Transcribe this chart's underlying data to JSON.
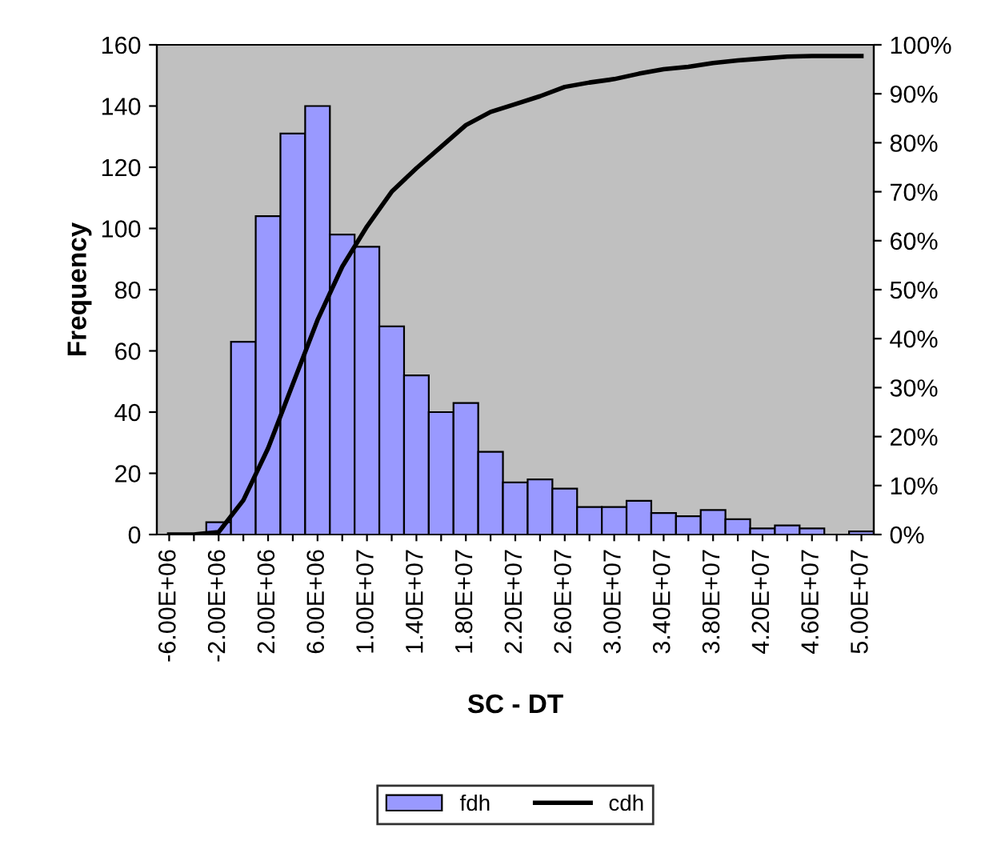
{
  "chart_data": {
    "type": "bar",
    "xlabel": "SC - DT",
    "ylabel": "Frequency",
    "categories": [
      "-6.00E+06",
      null,
      "-2.00E+06",
      null,
      "2.00E+06",
      null,
      "6.00E+06",
      null,
      "1.00E+07",
      null,
      "1.40E+07",
      null,
      "1.80E+07",
      null,
      "2.20E+07",
      null,
      "2.60E+07",
      null,
      "3.00E+07",
      null,
      "3.40E+07",
      null,
      "3.80E+07",
      null,
      "4.20E+07",
      null,
      "4.60E+07",
      null,
      "5.00E+07"
    ],
    "series": [
      {
        "name": "fdh",
        "color": "#9999ff",
        "values": [
          0,
          0,
          4,
          63,
          104,
          131,
          140,
          98,
          94,
          68,
          52,
          40,
          43,
          27,
          17,
          18,
          15,
          9,
          9,
          11,
          7,
          6,
          8,
          5,
          2,
          3,
          2,
          0,
          1
        ]
      },
      {
        "name": "cdh",
        "type": "line",
        "axis": "y2",
        "color": "#000000",
        "values": [
          0,
          0,
          0.5,
          7,
          17.6,
          30.7,
          43.8,
          54.7,
          62.9,
          70,
          74.8,
          79.2,
          83.6,
          86.3,
          87.9,
          89.5,
          91.4,
          92.3,
          93,
          94.1,
          95,
          95.5,
          96.3,
          96.8,
          97.2,
          97.6,
          97.7,
          97.7,
          97.7
        ]
      }
    ],
    "ylim": [
      0,
      160
    ],
    "yticks": [
      0,
      20,
      40,
      60,
      80,
      100,
      120,
      140,
      160
    ],
    "y2lim": [
      0,
      100
    ],
    "y2ticks": [
      {
        "value": 0,
        "label": "0%"
      },
      {
        "value": 10,
        "label": "10%"
      },
      {
        "value": 20,
        "label": "20%"
      },
      {
        "value": 30,
        "label": "30%"
      },
      {
        "value": 40,
        "label": "40%"
      },
      {
        "value": 50,
        "label": "50%"
      },
      {
        "value": 60,
        "label": "60%"
      },
      {
        "value": 70,
        "label": "70%"
      },
      {
        "value": 80,
        "label": "80%"
      },
      {
        "value": 90,
        "label": "90%"
      },
      {
        "value": 100,
        "label": "100%"
      }
    ],
    "grid": false,
    "legend": "bottom",
    "marker": "none",
    "line_style": "solid"
  }
}
